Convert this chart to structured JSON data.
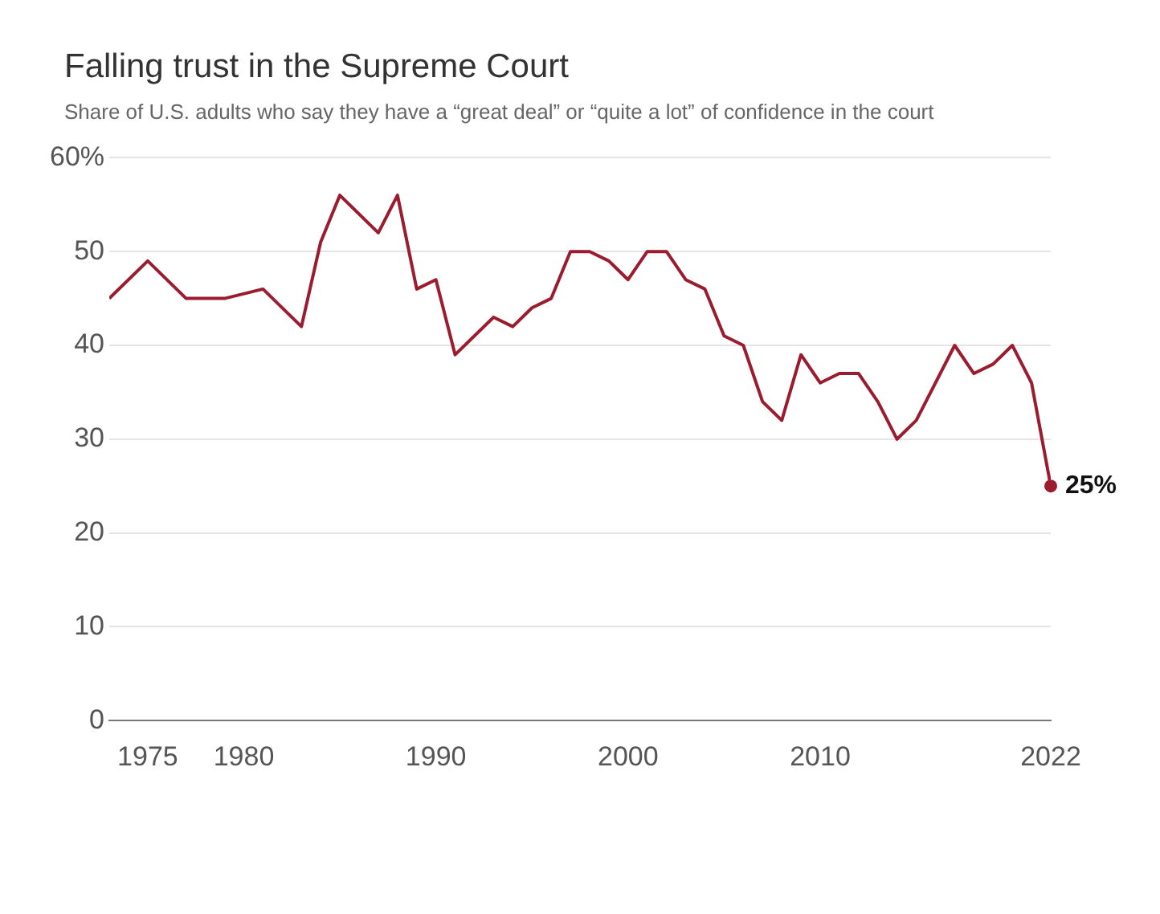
{
  "chart_data": {
    "type": "line",
    "title": "Falling trust in the Supreme Court",
    "subtitle": "Share of U.S. adults who say they have a “great deal” or “quite a lot” of confidence in the court",
    "x": [
      1973,
      1975,
      1977,
      1979,
      1981,
      1983,
      1984,
      1985,
      1987,
      1988,
      1989,
      1990,
      1991,
      1993,
      1994,
      1995,
      1996,
      1997,
      1998,
      1999,
      2000,
      2001,
      2002,
      2003,
      2004,
      2005,
      2006,
      2007,
      2008,
      2009,
      2010,
      2011,
      2012,
      2013,
      2014,
      2015,
      2017,
      2018,
      2019,
      2020,
      2021,
      2022
    ],
    "series": [
      {
        "color": "#9b1c2e",
        "values": [
          45,
          49,
          45,
          45,
          46,
          42,
          51,
          56,
          52,
          56,
          46,
          47,
          39,
          43,
          42,
          44,
          45,
          50,
          50,
          49,
          47,
          50,
          50,
          47,
          46,
          41,
          40,
          34,
          32,
          39,
          36,
          37,
          37,
          34,
          30,
          32,
          40,
          37,
          38,
          40,
          36,
          25
        ]
      }
    ],
    "xlim": [
      1973,
      2022
    ],
    "xticks": [
      1975,
      1980,
      1990,
      2000,
      2010,
      2022
    ],
    "ylim": [
      0,
      60
    ],
    "yticks": [
      0,
      10,
      20,
      30,
      40,
      50,
      {
        "value": 60,
        "label": "60%"
      }
    ],
    "grid": "y",
    "legend": false,
    "marker": "none",
    "line_style": "solid",
    "annotations": [
      {
        "text": "25%",
        "x": 2022,
        "y": 25
      }
    ]
  }
}
